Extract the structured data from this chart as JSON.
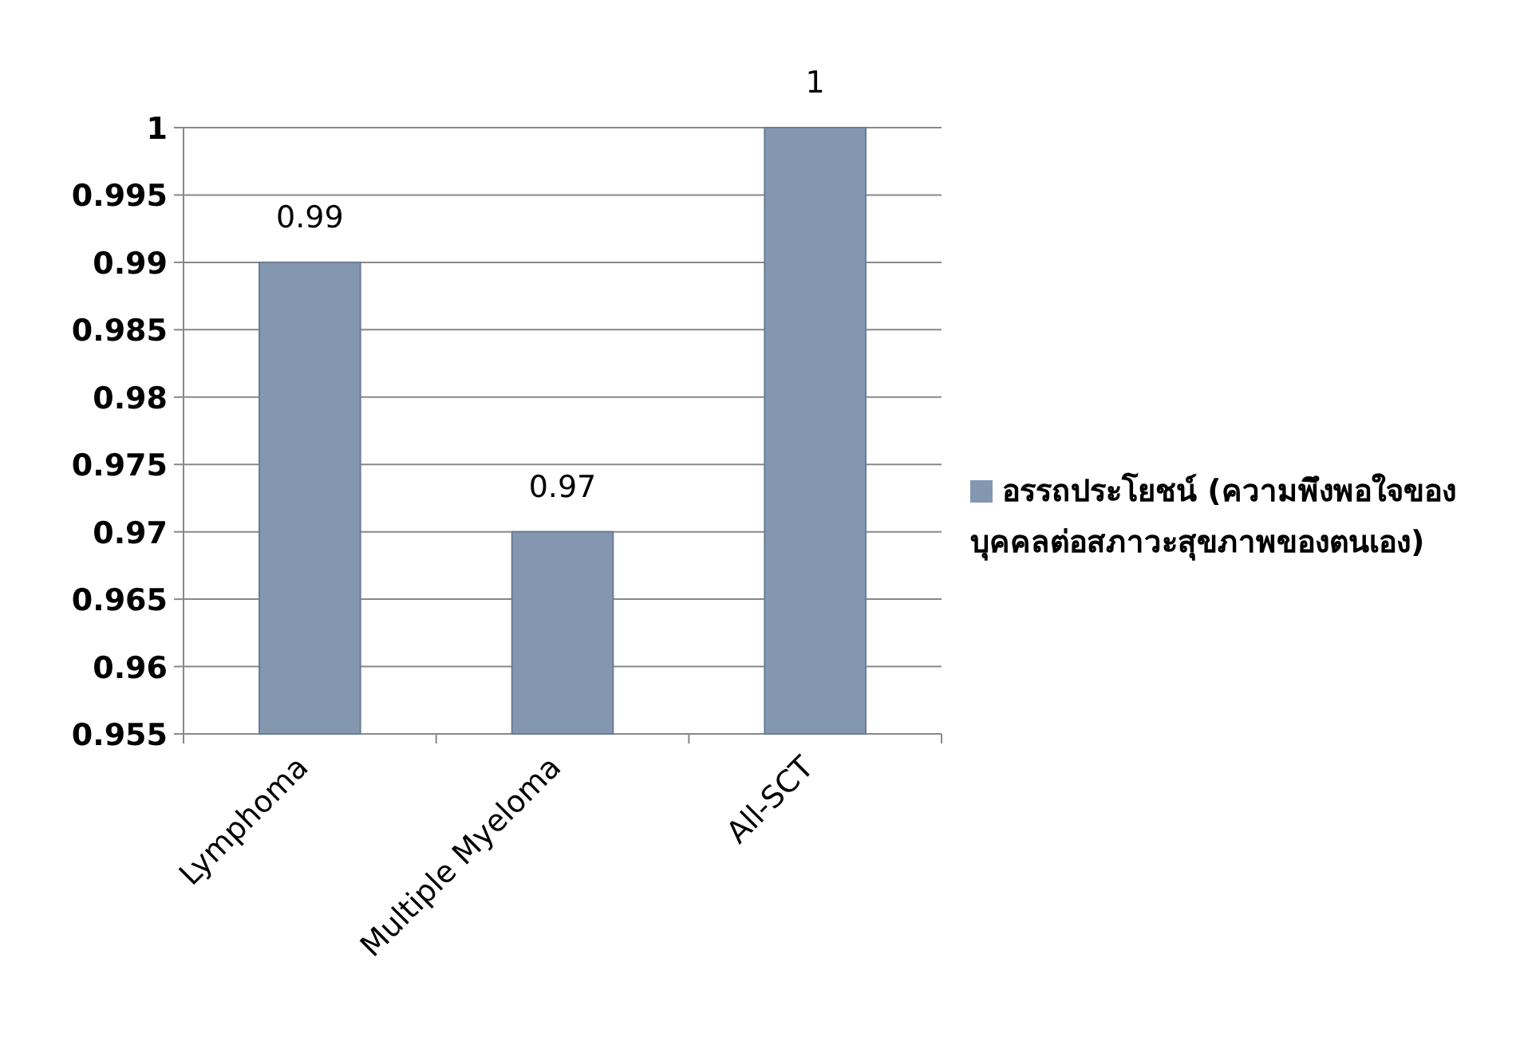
{
  "chart_data": {
    "type": "bar",
    "categories": [
      "Lymphoma",
      "Multiple Myeloma",
      "All-SCT"
    ],
    "series": [
      {
        "name": "อรรถประโยชน์ (ความพึงพอใจของบุคคลต่อสภาวะสุขภาพของตนเอง)",
        "color": "#8497b0",
        "values": [
          0.99,
          0.97,
          1
        ]
      }
    ],
    "ylim": [
      0.955,
      1
    ],
    "yticks": [
      0.955,
      0.96,
      0.965,
      0.97,
      0.975,
      0.98,
      0.985,
      0.99,
      0.995,
      1
    ],
    "grid": "y",
    "legend": "right",
    "data_labels": true
  }
}
